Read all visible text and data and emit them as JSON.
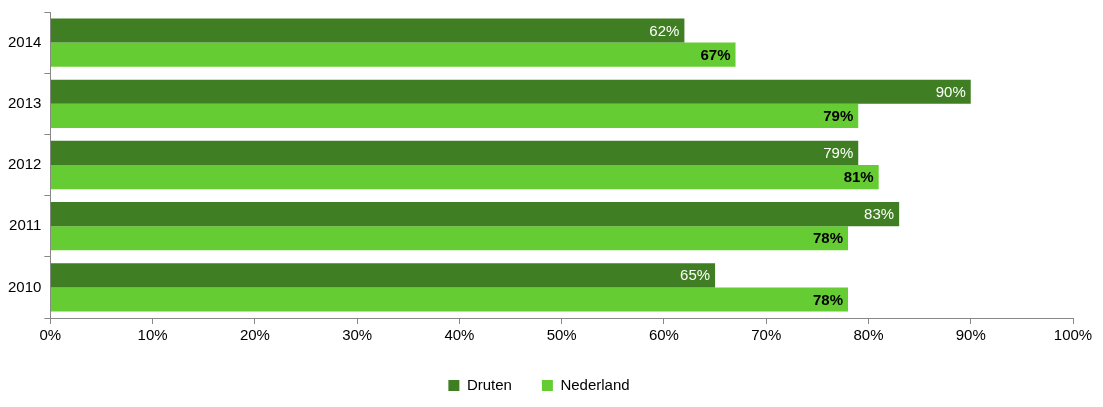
{
  "chart_data": {
    "type": "bar",
    "orientation": "horizontal",
    "categories": [
      "2014",
      "2013",
      "2012",
      "2011",
      "2010"
    ],
    "series": [
      {
        "name": "Druten",
        "color": "#3f7e22",
        "values": [
          62,
          90,
          79,
          83,
          65
        ],
        "value_labels": [
          "62%",
          "90%",
          "79%",
          "83%",
          "65%"
        ]
      },
      {
        "name": "Nederland",
        "color": "#66cc33",
        "values": [
          67,
          79,
          81,
          78,
          78
        ],
        "value_labels": [
          "67%",
          "79%",
          "81%",
          "78%",
          "78%"
        ]
      }
    ],
    "xlim": [
      0,
      100
    ],
    "xticks": [
      {
        "value": 0,
        "label": "0%"
      },
      {
        "value": 10,
        "label": "10%"
      },
      {
        "value": 20,
        "label": "20%"
      },
      {
        "value": 30,
        "label": "30%"
      },
      {
        "value": 40,
        "label": "40%"
      },
      {
        "value": 50,
        "label": "50%"
      },
      {
        "value": 60,
        "label": "60%"
      },
      {
        "value": 70,
        "label": "70%"
      },
      {
        "value": 80,
        "label": "80%"
      },
      {
        "value": 90,
        "label": "90%"
      },
      {
        "value": 100,
        "label": "100%"
      }
    ],
    "grid": false,
    "legend": "bottom"
  }
}
